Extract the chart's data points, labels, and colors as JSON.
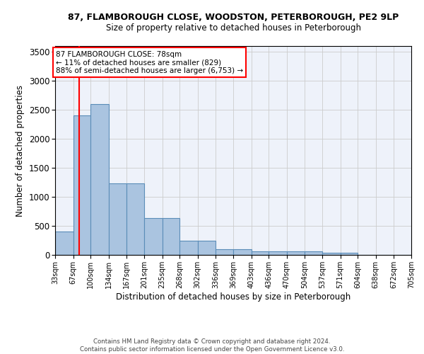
{
  "title1": "87, FLAMBOROUGH CLOSE, WOODSTON, PETERBOROUGH, PE2 9LP",
  "title2": "Size of property relative to detached houses in Peterborough",
  "xlabel": "Distribution of detached houses by size in Peterborough",
  "ylabel": "Number of detached properties",
  "footnote1": "Contains HM Land Registry data © Crown copyright and database right 2024.",
  "footnote2": "Contains public sector information licensed under the Open Government Licence v3.0.",
  "bar_edges": [
    33,
    67,
    100,
    134,
    167,
    201,
    235,
    268,
    302,
    336,
    369,
    403,
    436,
    470,
    504,
    537,
    571,
    604,
    638,
    672,
    705
  ],
  "bar_heights": [
    400,
    2400,
    2600,
    1230,
    1230,
    640,
    640,
    250,
    250,
    100,
    100,
    65,
    65,
    55,
    55,
    35,
    35,
    0,
    0,
    0,
    0
  ],
  "bar_color": "#aac4e0",
  "bar_edgecolor": "#5b8db8",
  "grid_color": "#cccccc",
  "bg_color": "#eef2fa",
  "annotation_text": "87 FLAMBOROUGH CLOSE: 78sqm\n← 11% of detached houses are smaller (829)\n88% of semi-detached houses are larger (6,753) →",
  "annotation_box_color": "white",
  "annotation_box_edgecolor": "red",
  "vline_x": 78,
  "vline_color": "red",
  "ylim": [
    0,
    3600
  ],
  "yticks": [
    0,
    500,
    1000,
    1500,
    2000,
    2500,
    3000,
    3500
  ]
}
